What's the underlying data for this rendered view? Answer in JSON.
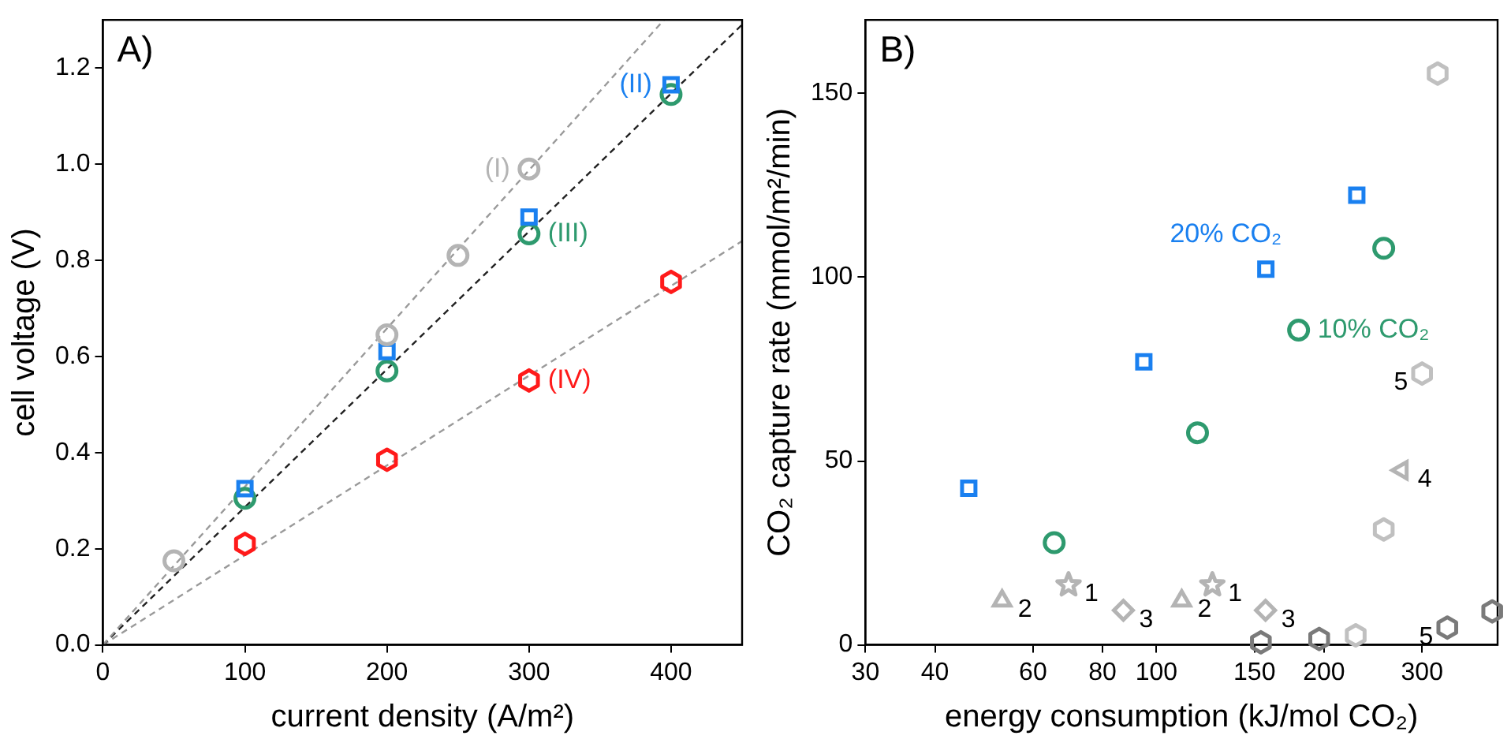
{
  "chart_data": [
    {
      "type": "scatter",
      "annotations": [
        "A)"
      ],
      "xlabel": "current density (A/m²)",
      "ylabel": "cell voltage (V)",
      "xlim": [
        0,
        450
      ],
      "xticks": [
        0,
        100,
        200,
        300,
        400
      ],
      "ylim": [
        0,
        1.3
      ],
      "yticks": [
        {
          "value": 0,
          "label": "0.0"
        },
        0.2,
        0.4,
        0.6,
        0.8,
        {
          "value": 1,
          "label": "1.0"
        },
        1.2
      ],
      "grid": false,
      "series": [
        {
          "name": "(I)",
          "color": "#b4b4b4",
          "marker": "circle",
          "x": [
            50,
            200,
            250,
            300
          ],
          "values": [
            0.175,
            0.645,
            0.81,
            0.99
          ]
        },
        {
          "name": "(II)",
          "color": "#1a80f0",
          "marker": "square",
          "x": [
            100,
            200,
            300,
            400
          ],
          "values": [
            0.325,
            0.61,
            0.89,
            1.165
          ]
        },
        {
          "name": "(III)",
          "color": "#2e9a6e",
          "marker": "circle",
          "x": [
            100,
            200,
            300,
            400
          ],
          "values": [
            0.305,
            0.57,
            0.855,
            1.145
          ]
        },
        {
          "name": "(IV)",
          "color": "#ff1a1a",
          "x": [
            100,
            200,
            300,
            400
          ],
          "values": [
            0.21,
            0.385,
            0.55,
            0.755
          ]
        },
        {
          "type": "line",
          "color": "#9a9a9a",
          "line_style": "dashed",
          "marker": "none",
          "x": [
            0,
            395
          ],
          "values": [
            0,
            1.3
          ]
        },
        {
          "type": "line",
          "color": "#222222",
          "line_style": "dashed",
          "marker": "none",
          "x": [
            0,
            450
          ],
          "values": [
            0,
            1.29
          ]
        },
        {
          "type": "line",
          "color": "#9a9a9a",
          "line_style": "dashed",
          "marker": "none",
          "x": [
            0,
            450
          ],
          "values": [
            0,
            0.84
          ]
        }
      ]
    },
    {
      "type": "scatter",
      "annotations": [
        "B)",
        {
          "text": "2",
          "x": 52.8,
          "y": 12
        },
        {
          "text": "1",
          "x": 69.5,
          "y": 16.3
        },
        {
          "text": "3",
          "x": 87.2,
          "y": 9.4
        },
        {
          "text": "2",
          "x": 111,
          "y": 12
        },
        {
          "text": "1",
          "x": 126,
          "y": 16.3
        },
        {
          "text": "3",
          "x": 157,
          "y": 9.4
        },
        {
          "text": "4",
          "x": 276,
          "y": 47.5
        },
        {
          "text": "5",
          "x": 300,
          "y": 73.8
        },
        {
          "text": "5",
          "x": 333,
          "y": 4.7
        }
      ],
      "xlabel": "energy consumption (kJ/mol CO₂)",
      "ylabel": "CO₂ capture rate (mmol/m²/min)",
      "log": "x",
      "xlim": [
        30,
        410
      ],
      "xticks": [
        30,
        40,
        60,
        80,
        100,
        150,
        200,
        300
      ],
      "ylim": [
        0,
        170
      ],
      "yticks": [
        0,
        50,
        100,
        150
      ],
      "grid": false,
      "series": [
        {
          "name": "20% CO₂",
          "color": "#1a80f0",
          "marker": "square",
          "x": [
            46,
            94.9,
            157.2,
            229
          ],
          "values": [
            42.6,
            77,
            102.2,
            122.3
          ]
        },
        {
          "name": "10% CO₂",
          "color": "#2e9a6e",
          "marker": "circle",
          "x": [
            65.5,
            118.5,
            180,
            256
          ],
          "values": [
            27.8,
            57.7,
            85.6,
            107.9
          ]
        },
        {
          "color": "#b4b4b4",
          "marker": "triangle",
          "x": [
            52.8,
            111
          ],
          "values": [
            12,
            12
          ]
        },
        {
          "color": "#b4b4b4",
          "marker": "star",
          "x": [
            69.5,
            126
          ],
          "values": [
            16.3,
            16.3
          ]
        },
        {
          "color": "#b4b4b4",
          "marker": "diamond",
          "x": [
            87.2,
            157
          ],
          "values": [
            9.4,
            9.4
          ]
        },
        {
          "color": "#b4b4b4",
          "marker": "triangle-left",
          "x": [
            276
          ],
          "values": [
            47.5
          ]
        },
        {
          "color": "#c0c0c0",
          "x": [
            320,
            300,
            256,
            228
          ],
          "values": [
            155.4,
            73.8,
            31.4,
            2.6
          ]
        },
        {
          "color": "#7a7a7a",
          "x": [
            154,
            196,
            333,
            401
          ],
          "values": [
            0.7,
            1.6,
            4.7,
            9.1
          ]
        }
      ]
    }
  ]
}
